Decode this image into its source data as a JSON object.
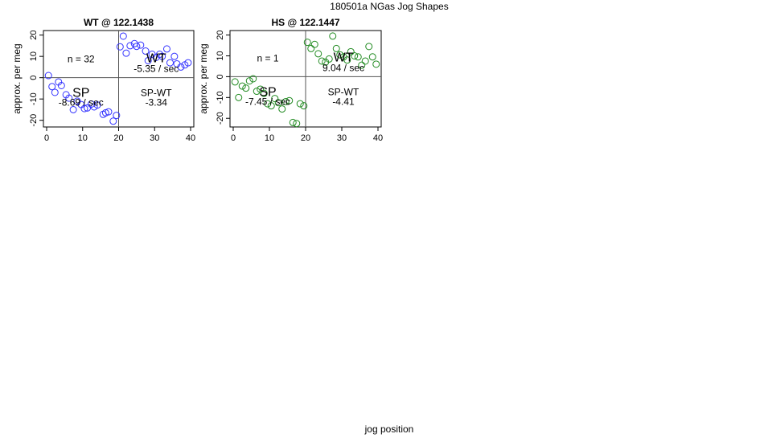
{
  "suptitle": "180501a   NGas Jog Shapes",
  "xlabel_global": "jog position",
  "chart_data": [
    {
      "type": "scatter",
      "title": "WT @ 122.1438",
      "ylabel": "approx. per meg",
      "xlim": [
        0,
        40
      ],
      "ylim": [
        -22,
        21
      ],
      "xticks": [
        0,
        10,
        20,
        30,
        40
      ],
      "yticks": [
        -20,
        -10,
        0,
        10,
        20
      ],
      "marker_color": "#3333ff",
      "vline_x": 20,
      "hline_y": 0,
      "n_label": "n = 32",
      "quadrant_labels": {
        "upper_right_big": "WT",
        "upper_right_rate": "-5.35 / sec",
        "lower_left_big": "SP",
        "lower_left_rate": "-8.69 / sec",
        "lower_right_name": "SP-WT",
        "lower_right_value": "-3.34"
      },
      "x": [
        0.5,
        1.5,
        2.3,
        3.3,
        4.1,
        5.4,
        6.2,
        7.4,
        8.5,
        9.6,
        10.5,
        11.3,
        12.4,
        13.2,
        14.1,
        15.7,
        16.4,
        17.2,
        18.5,
        19.4,
        20.4,
        21.3,
        22.1,
        23.2,
        24.4,
        25.0,
        26.1,
        27.5,
        28.2,
        29.3,
        30.4,
        31.4,
        32.1,
        33.4,
        34.3,
        35.5,
        36.2,
        37.3,
        38.4,
        39.3
      ],
      "y": [
        1.0,
        -4.2,
        -6.9,
        -2.0,
        -3.7,
        -8.0,
        -9.6,
        -15.0,
        -11.0,
        -12.6,
        -14.5,
        -14.2,
        -12.4,
        -13.7,
        -12.8,
        -17.2,
        -16.5,
        -16.0,
        -20.4,
        -17.7,
        14.5,
        19.5,
        11.5,
        15.0,
        16.0,
        14.7,
        15.3,
        12.5,
        8.0,
        11.0,
        9.5,
        11.0,
        10.0,
        13.5,
        7.0,
        10.0,
        6.5,
        5.0,
        6.0,
        7.0
      ]
    },
    {
      "type": "scatter",
      "title": "HS @ 122.1447",
      "ylabel": "approx. per meg",
      "xlim": [
        0,
        40
      ],
      "ylim": [
        -23,
        21
      ],
      "xticks": [
        0,
        10,
        20,
        30,
        40
      ],
      "yticks": [
        -20,
        -10,
        0,
        10,
        20
      ],
      "marker_color": "#228b22",
      "vline_x": 20,
      "hline_y": 0,
      "n_label": "n = 1",
      "quadrant_labels": {
        "upper_right_big": "WT",
        "upper_right_rate": "9.04 / sec",
        "lower_left_big": "SP",
        "lower_left_rate": "-7.45 / sec",
        "lower_right_name": "SP-WT",
        "lower_right_value": "-4.41"
      },
      "x": [
        0.5,
        1.5,
        2.5,
        3.5,
        4.5,
        5.5,
        6.5,
        7.5,
        8.5,
        9.5,
        10.5,
        11.5,
        12.5,
        13.5,
        14.5,
        15.5,
        16.5,
        17.5,
        18.5,
        19.5,
        20.5,
        21.5,
        22.5,
        23.5,
        24.5,
        25.5,
        26.5,
        27.5,
        28.5,
        29.5,
        30.5,
        31.5,
        32.5,
        33.5,
        34.5,
        35.5,
        36.5,
        37.5,
        38.5,
        39.5
      ],
      "y": [
        -2.5,
        -10.0,
        -4.5,
        -5.5,
        -2.0,
        -1.0,
        -7.0,
        -6.0,
        -8.0,
        -13.0,
        -14.0,
        -10.5,
        -12.5,
        -15.5,
        -12.0,
        -11.5,
        -22.0,
        -22.5,
        -13.0,
        -14.0,
        16.5,
        13.5,
        15.5,
        11.0,
        7.5,
        7.0,
        8.5,
        19.5,
        13.5,
        10.5,
        9.5,
        8.0,
        12.0,
        10.0,
        9.5,
        5.5,
        7.5,
        14.5,
        9.5,
        6.0
      ]
    }
  ]
}
